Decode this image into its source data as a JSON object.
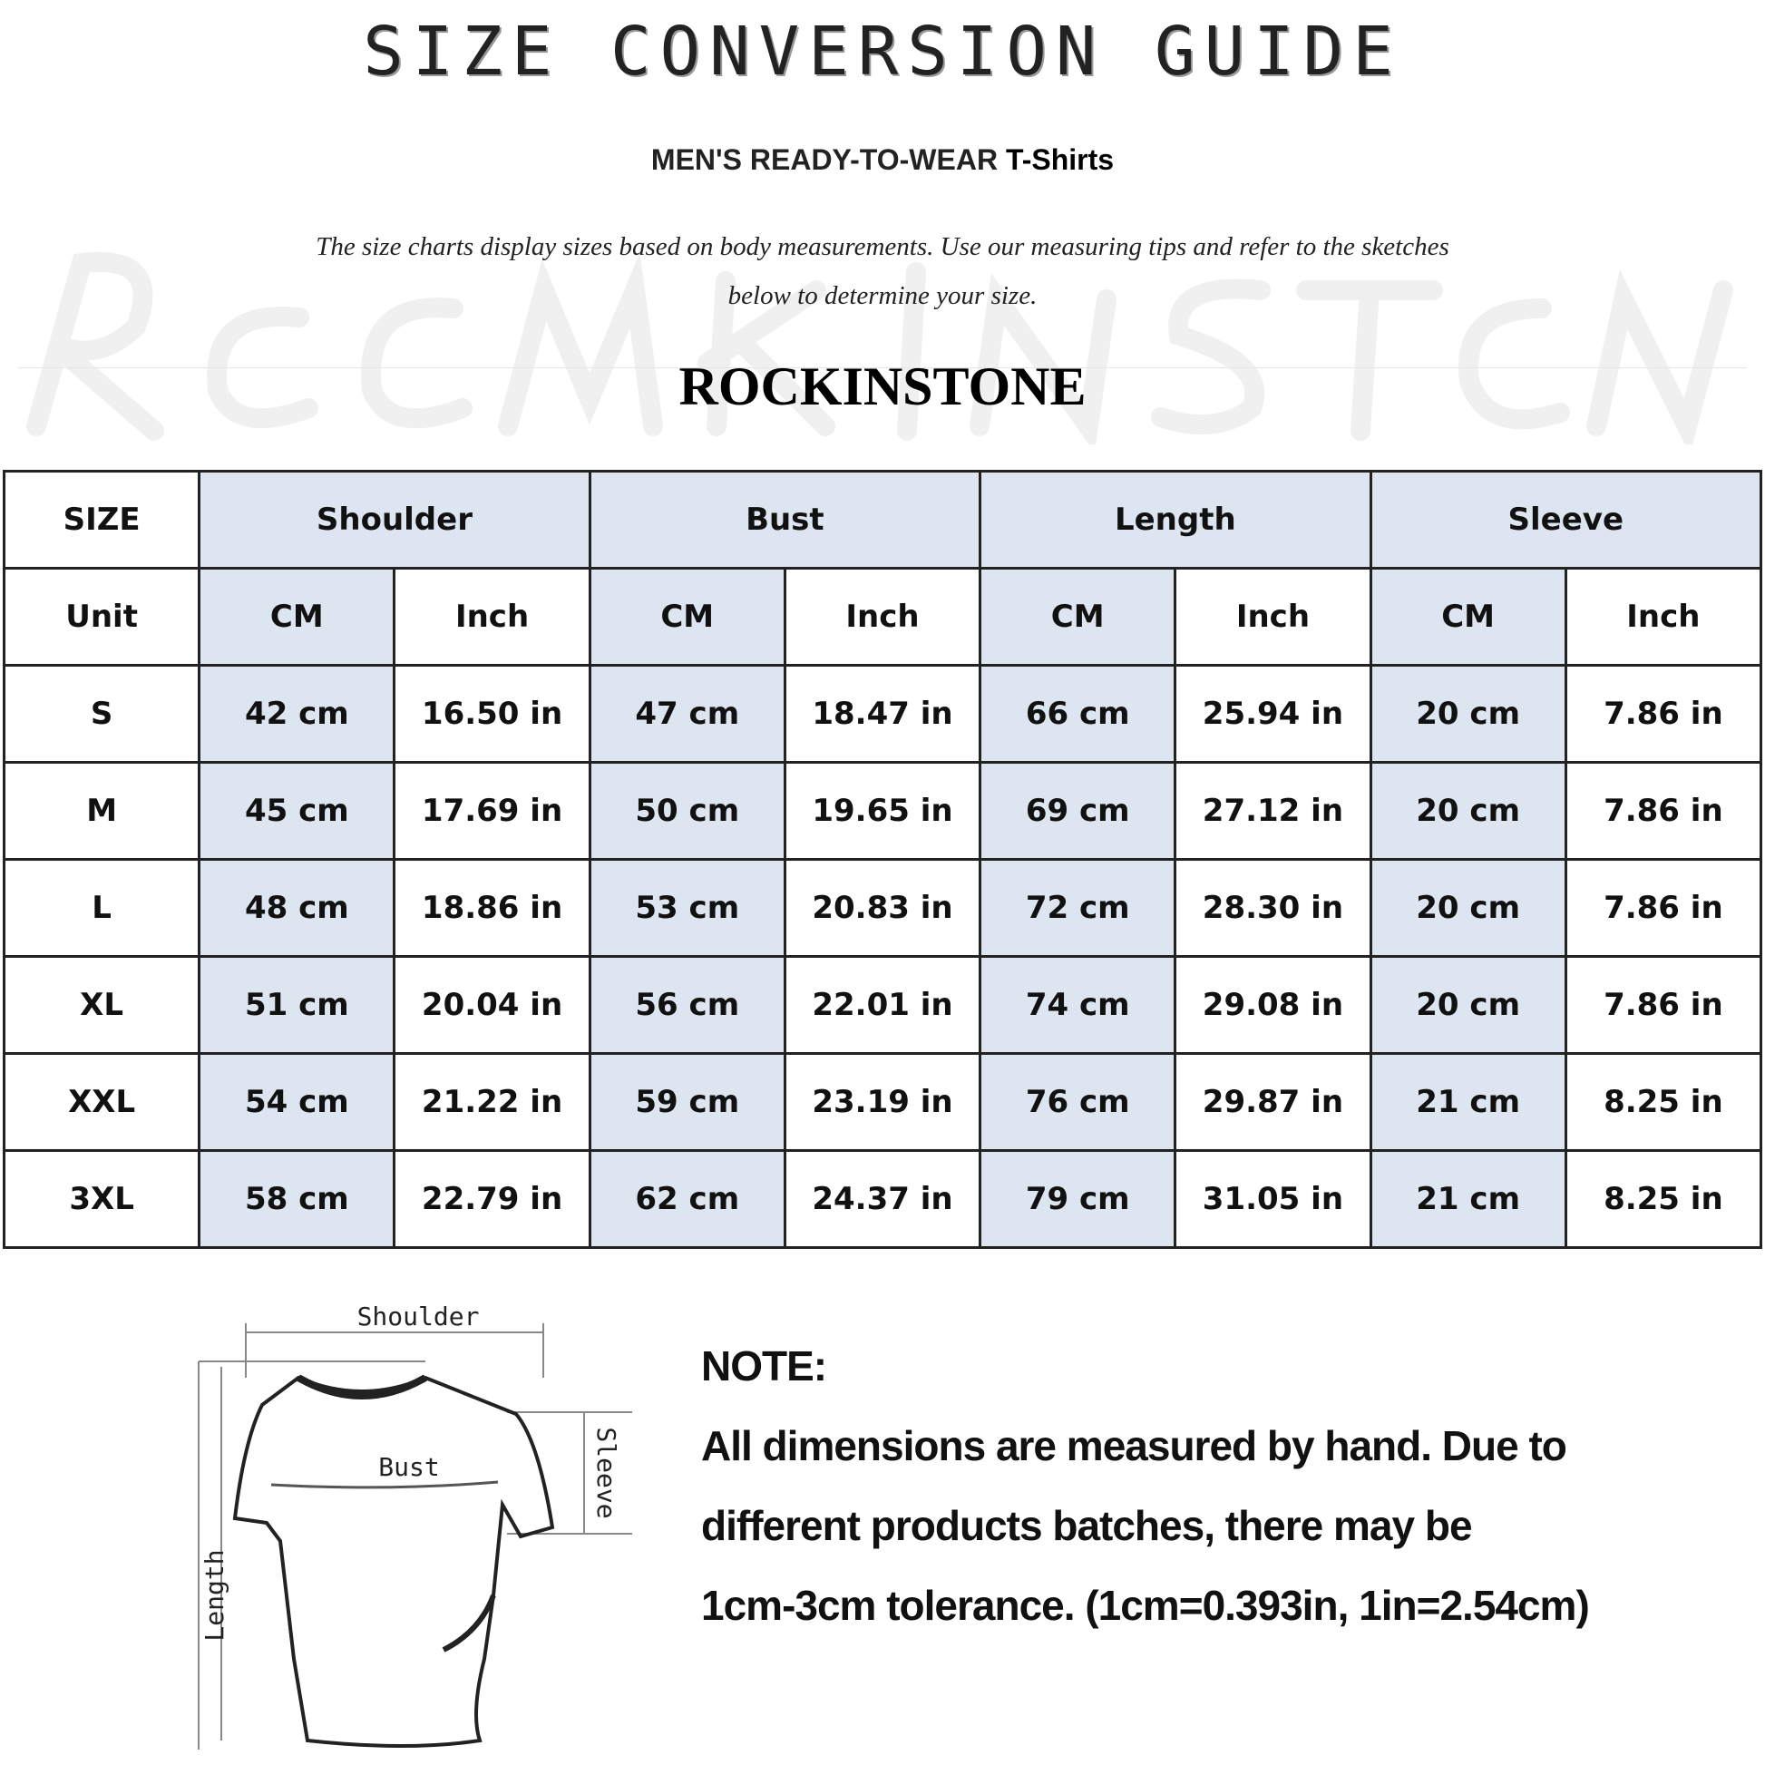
{
  "header": {
    "title": "SIZE CONVERSION GUIDE",
    "subtitle_main": "MEN'S READY-TO-WEAR ",
    "subtitle_product": "T-Shirts",
    "description_line1": "The size charts display sizes based on body measurements. Use our measuring tips and refer to the sketches",
    "description_line2": "below to determine your size.",
    "brand": "ROCKINSTONE",
    "watermark_text": "ROCKINSTONE"
  },
  "table": {
    "size_header": "SIZE",
    "groups": [
      "Shoulder",
      "Bust",
      "Length",
      "Sleeve"
    ],
    "unit_label": "Unit",
    "units": [
      "CM",
      "Inch",
      "CM",
      "Inch",
      "CM",
      "Inch",
      "CM",
      "Inch"
    ],
    "rows": [
      {
        "size": "S",
        "values": [
          "42 cm",
          "16.50 in",
          "47 cm",
          "18.47  in",
          "66 cm",
          "25.94  in",
          "20 cm",
          "7.86  in"
        ]
      },
      {
        "size": "M",
        "values": [
          "45 cm",
          "17.69  in",
          "50 cm",
          "19.65  in",
          "69 cm",
          "27.12  in",
          "20 cm",
          "7.86  in"
        ]
      },
      {
        "size": "L",
        "values": [
          "48 cm",
          "18.86  in",
          "53 cm",
          "20.83  in",
          "72 cm",
          "28.30  in",
          "20 cm",
          "7.86  in"
        ]
      },
      {
        "size": "XL",
        "values": [
          "51 cm",
          "20.04  in",
          "56 cm",
          "22.01  in",
          "74 cm",
          "29.08  in",
          "20 cm",
          "7.86  in"
        ]
      },
      {
        "size": "XXL",
        "values": [
          "54 cm",
          "21.22  in",
          "59 cm",
          "23.19  in",
          "76 cm",
          "29.87  in",
          "21 cm",
          "8.25  in"
        ]
      },
      {
        "size": "3XL",
        "values": [
          "58 cm",
          "22.79  in",
          "62 cm",
          "24.37  in",
          "79 cm",
          "31.05  in",
          "21 cm",
          "8.25  in"
        ]
      }
    ],
    "colors": {
      "highlight": "#dde6f0",
      "border": "#222222"
    }
  },
  "sketch": {
    "labels": {
      "shoulder": "Shoulder",
      "bust": "Bust",
      "length": "Length",
      "sleeve": "Sleeve"
    }
  },
  "note": {
    "heading": "NOTE:",
    "lines": [
      "All dimensions are measured by hand. Due to",
      "different products batches, there may be",
      "1cm-3cm tolerance. (1cm=0.393in, 1in=2.54cm)"
    ]
  }
}
